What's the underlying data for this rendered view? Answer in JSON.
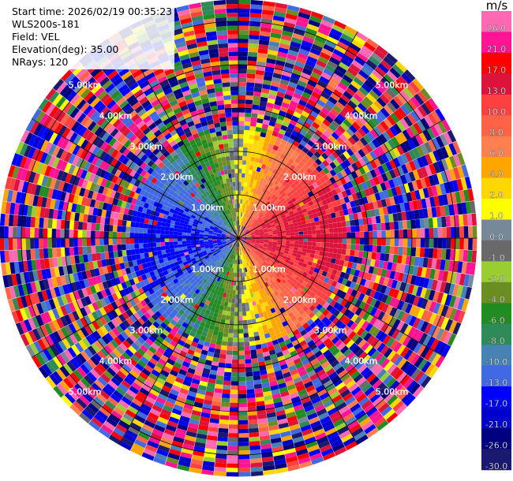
{
  "info": {
    "start_time": "Start time: 2026/02/19 00:35:23",
    "instrument": "WLS200s-181",
    "field": "Field: VEL",
    "elevation": "Elevation(deg): 35.00",
    "nrays": "NRays: 120"
  },
  "colorbar": {
    "unit": "m/s",
    "ticks": [
      "26.0",
      "21.0",
      "17.0",
      "13.0",
      "10.0",
      "8.0",
      "6.0",
      "4.0",
      "2.0",
      "1.0",
      "0.0",
      "-1.0",
      "-2.0",
      "-4.0",
      "-6.0",
      "-8.0",
      "-10.0",
      "-13.0",
      "-17.0",
      "-21.0",
      "-26.0",
      "-30.0"
    ],
    "colors": [
      "#ff69b4",
      "#ff1493",
      "#ff0000",
      "#dc143c",
      "#ff4040",
      "#ff6347",
      "#ff7f50",
      "#ffa500",
      "#ffd700",
      "#ffff00",
      "#778899",
      "#696969",
      "#9acd32",
      "#6b8e23",
      "#228b22",
      "#2e8b57",
      "#4682b4",
      "#4169e1",
      "#0000ff",
      "#0000cd",
      "#000080",
      "#191970"
    ]
  },
  "chart_data": {
    "type": "heatmap",
    "title": "",
    "field": "VEL",
    "units": "m/s",
    "elevation_deg": 35.0,
    "nrays": 120,
    "range_rings_km": [
      1.0,
      2.0,
      3.0,
      4.0,
      5.0
    ],
    "ring_labels": [
      "1.00km",
      "2.00km",
      "3.00km",
      "4.00km",
      "5.00km"
    ],
    "range_max_km": 5.5,
    "color_scale_bounds": [
      -30,
      -26,
      -21,
      -17,
      -13,
      -10,
      -8,
      -6,
      -4,
      -2,
      -1,
      0,
      1,
      2,
      4,
      6,
      8,
      10,
      13,
      17,
      21,
      26,
      30
    ],
    "pattern": "inner ~2.5 km: coherent wind field, positive (red/orange) to the east, negative (blue/green) to the west; beyond: noisy values spanning full scale"
  }
}
